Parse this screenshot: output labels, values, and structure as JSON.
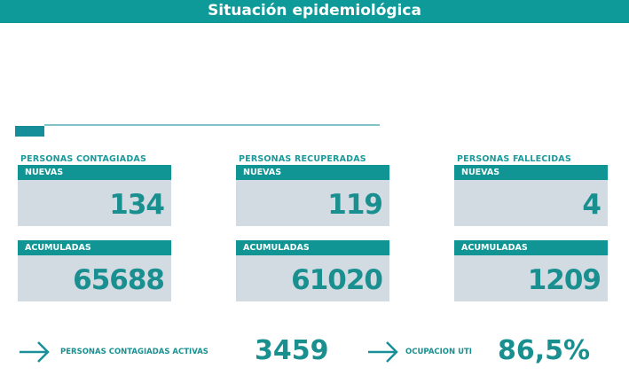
{
  "header": {
    "title": "Situación epidemiológica"
  },
  "groups": [
    {
      "title": "PERSONAS CONTAGIADAS",
      "new_label": "NUEVAS",
      "new_value": "134",
      "acc_label": "ACUMULADAS",
      "acc_value": "65688"
    },
    {
      "title": "PERSONAS RECUPERADAS",
      "new_label": "NUEVAS",
      "new_value": "119",
      "acc_label": "ACUMULADAS",
      "acc_value": "61020"
    },
    {
      "title": "PERSONAS FALLECIDAS",
      "new_label": "NUEVAS",
      "new_value": "4",
      "acc_label": "ACUMULADAS",
      "acc_value": "1209"
    }
  ],
  "summary": {
    "active_label": "PERSONAS CONTAGIADAS ACTIVAS",
    "active_value": "3459",
    "uti_label": "OCUPACION UTI",
    "uti_value": "86,5%"
  },
  "colors": {
    "accent": "#0f9a9a",
    "card": "#d3dbe2"
  }
}
